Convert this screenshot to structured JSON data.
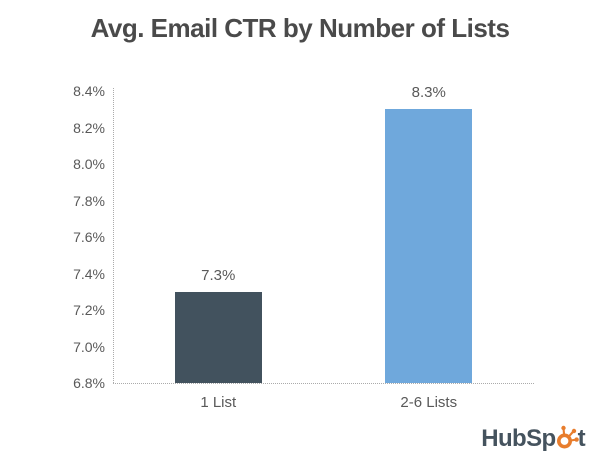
{
  "chart_data": {
    "type": "bar",
    "title": "Avg. Email CTR by Number of Lists",
    "categories": [
      "1 List",
      "2-6 Lists"
    ],
    "values": [
      7.3,
      8.3
    ],
    "value_labels": [
      "7.3%",
      "8.3%"
    ],
    "xlabel": "",
    "ylabel": "",
    "ylim": [
      6.8,
      8.4
    ],
    "ytick_step": 0.2,
    "ytick_labels": [
      "6.8%",
      "7.0%",
      "7.2%",
      "7.4%",
      "7.6%",
      "7.8%",
      "8.0%",
      "8.2%",
      "8.4%"
    ],
    "bar_colors": [
      "#42525e",
      "#6fa8dc"
    ],
    "grid": false,
    "legend": "none",
    "axis_line_style": "dotted"
  },
  "colors": {
    "title_text": "#4a4a4a",
    "axis_text": "#595959",
    "axis_line": "#ababab",
    "logo_text": "#45535e",
    "logo_sprocket": "#e87d2d"
  },
  "logo": {
    "name": "HubSpot",
    "text_before": "HubSp",
    "text_after": "t"
  }
}
